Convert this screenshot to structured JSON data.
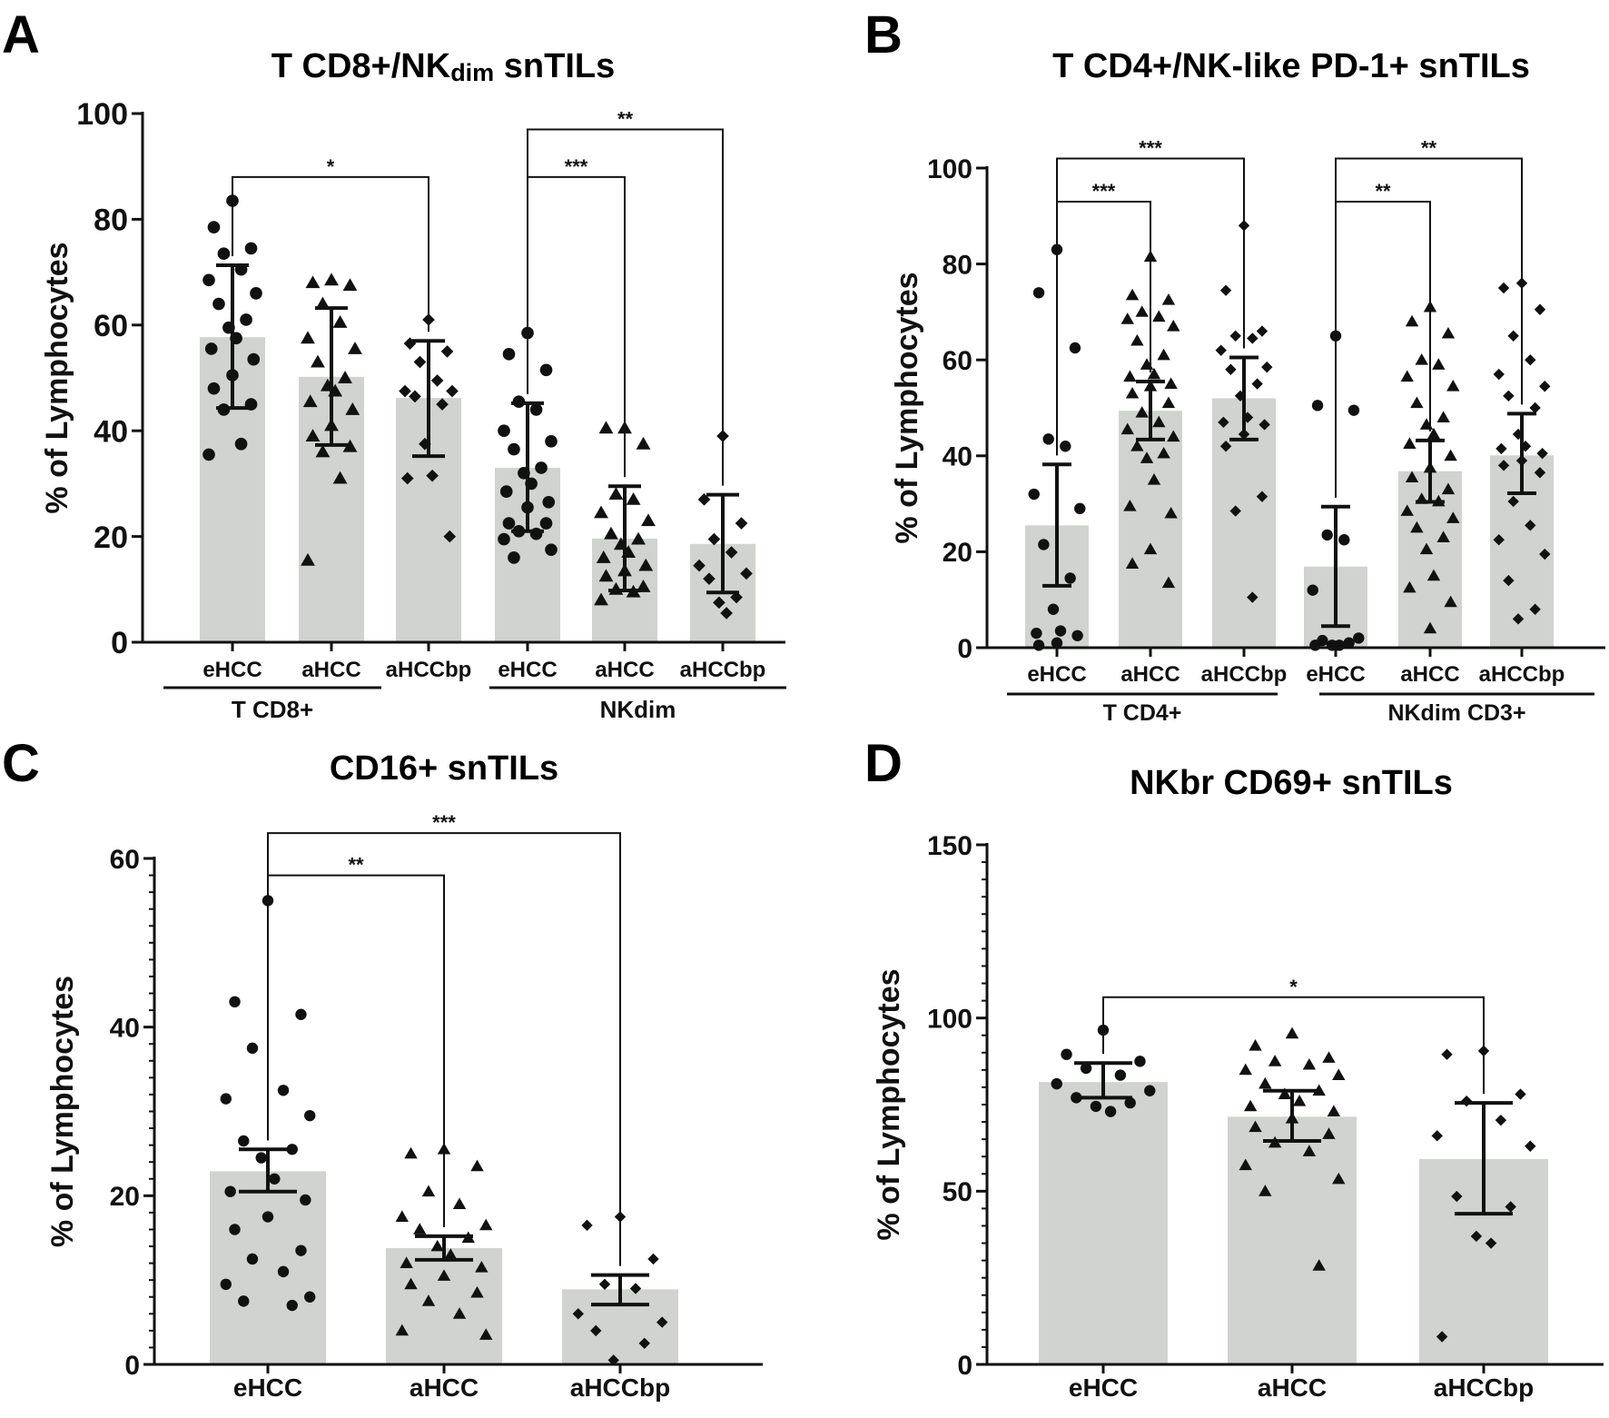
{
  "styles": {
    "bar_color": "#d0d3d0",
    "ink_color": "#111111"
  },
  "chart_data": [
    {
      "panel": "A",
      "type": "bar",
      "title": "T CD8+/NKdim snTILs",
      "title_main": "T CD8+/NK",
      "title_sub": "dim",
      "title_tail": " snTILs",
      "ylabel": "% of Lymphocytes",
      "ylim": [
        0,
        100
      ],
      "yticks": [
        0,
        20,
        40,
        60,
        80,
        100
      ],
      "minor_ticks": false,
      "markers": [
        "circle",
        "triangle",
        "diamond",
        "circle",
        "triangle",
        "diamond"
      ],
      "categories": [
        "eHCC",
        "aHCC",
        "aHCCbp",
        "eHCC",
        "aHCC",
        "aHCCbp"
      ],
      "groups": [
        {
          "label": "T CD8+",
          "from": 0,
          "to": 2
        },
        {
          "label": "NKdim",
          "from": 3,
          "to": 5
        }
      ],
      "means": [
        57.7,
        50.2,
        46.2,
        33.0,
        19.6,
        18.6
      ],
      "err_low": [
        44.3,
        37.3,
        35.2,
        21.0,
        9.8,
        9.4
      ],
      "err_high": [
        71.3,
        63.2,
        57.0,
        45.2,
        29.5,
        27.9
      ],
      "points": [
        [
          83.5,
          78.5,
          74.5,
          73.5,
          70.5,
          68.5,
          66.0,
          64.0,
          61.0,
          59.5,
          57.5,
          55.5,
          53.5,
          50.5,
          48.0,
          45.0,
          44.0,
          37.5,
          35.5
        ],
        [
          68.5,
          68.0,
          67.5,
          64.0,
          60.5,
          57.5,
          55.5,
          53.0,
          50.0,
          48.5,
          47.5,
          45.5,
          44.0,
          41.0,
          39.0,
          37.0,
          36.0,
          31.0,
          15.5
        ],
        [
          61.0,
          56.5,
          55.0,
          53.0,
          49.5,
          47.5,
          47.5,
          46.5,
          45.0,
          37.5,
          31.5,
          31.0,
          20.0
        ],
        [
          58.5,
          54.5,
          51.5,
          45.5,
          44.0,
          40.0,
          38.0,
          36.5,
          33.0,
          32.0,
          30.0,
          28.5,
          26.5,
          25.5,
          22.5,
          22.5,
          21.0,
          20.5,
          19.5,
          17.5,
          16.0
        ],
        [
          40.5,
          40.5,
          37.5,
          28.0,
          27.0,
          24.5,
          23.0,
          20.5,
          19.5,
          18.5,
          17.0,
          16.0,
          14.5,
          13.5,
          12.5,
          10.5,
          10.0,
          9.5,
          8.0
        ],
        [
          39.0,
          27.0,
          22.5,
          19.5,
          17.0,
          14.5,
          13.0,
          12.0,
          8.5,
          7.5,
          5.5
        ]
      ],
      "comparisons": [
        {
          "from": 0,
          "to": 2,
          "y": 88,
          "label": "*"
        },
        {
          "from": 3,
          "to": 4,
          "y": 88,
          "label": "***"
        },
        {
          "from": 3,
          "to": 5,
          "y": 97,
          "label": "**"
        }
      ]
    },
    {
      "panel": "B",
      "type": "bar",
      "title": "T CD4+/NK-like PD-1+ snTILs",
      "ylabel": "% of Lymphocytes",
      "ylim": [
        0,
        100
      ],
      "yticks": [
        0,
        20,
        40,
        60,
        80,
        100
      ],
      "minor_ticks": false,
      "markers": [
        "circle",
        "triangle",
        "diamond",
        "circle",
        "triangle",
        "diamond"
      ],
      "categories": [
        "eHCC",
        "aHCC",
        "aHCCbp",
        "eHCC",
        "aHCC",
        "aHCCbp"
      ],
      "groups": [
        {
          "label": "T CD4+",
          "from": 0,
          "to": 2
        },
        {
          "label": "NKdim CD3+",
          "from": 3,
          "to": 5
        }
      ],
      "means": [
        25.5,
        49.4,
        52.0,
        16.9,
        36.8,
        40.1
      ],
      "err_low": [
        12.9,
        43.4,
        43.4,
        4.5,
        30.4,
        32.2
      ],
      "err_high": [
        38.2,
        55.5,
        60.5,
        29.4,
        43.2,
        48.8
      ],
      "points": [
        [
          83.0,
          74.0,
          62.5,
          43.5,
          42.0,
          32.0,
          29.0,
          21.5,
          14.5,
          8.0,
          3.5,
          3.0,
          2.5,
          1.0,
          0.5
        ],
        [
          81.5,
          73.5,
          72.5,
          70.0,
          69.0,
          68.5,
          67.0,
          64.0,
          61.0,
          59.0,
          57.0,
          56.5,
          55.0,
          54.5,
          53.0,
          51.0,
          49.0,
          47.0,
          45.5,
          44.0,
          42.0,
          40.5,
          39.5,
          35.0,
          29.5,
          28.0,
          20.5,
          17.5,
          13.5
        ],
        [
          88.0,
          74.5,
          66.0,
          65.0,
          64.5,
          62.0,
          58.5,
          58.0,
          55.0,
          52.5,
          48.0,
          47.0,
          46.5,
          44.5,
          42.0,
          31.5,
          28.5,
          10.5
        ],
        [
          65.0,
          50.5,
          49.5,
          23.5,
          22.5,
          12.0,
          2.0,
          1.5,
          1.0,
          0.5,
          0.5,
          0.5
        ],
        [
          71.0,
          68.0,
          65.5,
          60.0,
          59.0,
          56.5,
          54.5,
          51.0,
          48.0,
          46.5,
          44.5,
          42.5,
          40.0,
          37.5,
          35.5,
          33.0,
          31.0,
          30.5,
          28.5,
          27.0,
          25.0,
          23.0,
          20.5,
          15.0,
          12.5,
          9.5,
          4.0
        ],
        [
          76.0,
          75.0,
          70.5,
          65.0,
          60.0,
          57.0,
          54.5,
          52.5,
          50.0,
          44.5,
          42.0,
          41.5,
          40.5,
          39.0,
          38.0,
          36.5,
          30.5,
          25.5,
          22.5,
          19.5,
          14.0,
          8.0,
          6.0
        ]
      ],
      "comparisons": [
        {
          "from": 0,
          "to": 1,
          "y": 93,
          "label": "***"
        },
        {
          "from": 0,
          "to": 2,
          "y": 102,
          "label": "***"
        },
        {
          "from": 3,
          "to": 4,
          "y": 93,
          "label": "**"
        },
        {
          "from": 3,
          "to": 5,
          "y": 102,
          "label": "**"
        }
      ]
    },
    {
      "panel": "C",
      "type": "bar",
      "title": "CD16+ snTILs",
      "ylabel": "% of Lymphocytes",
      "ylim": [
        0,
        60
      ],
      "yticks": [
        0,
        20,
        40,
        60
      ],
      "minor_ticks": true,
      "markers": [
        "circle",
        "triangle",
        "diamond"
      ],
      "categories": [
        "eHCC",
        "aHCC",
        "aHCCbp"
      ],
      "groups": [],
      "means": [
        22.9,
        13.8,
        8.9
      ],
      "err_low": [
        20.5,
        12.4,
        7.1
      ],
      "err_high": [
        25.5,
        15.2,
        10.6
      ],
      "points": [
        [
          55.0,
          43.0,
          41.5,
          37.5,
          32.5,
          31.5,
          29.5,
          26.5,
          25.5,
          24.5,
          22.0,
          20.5,
          19.5,
          17.5,
          16.0,
          13.5,
          12.5,
          11.0,
          9.5,
          8.0,
          7.5,
          7.0
        ],
        [
          25.5,
          25.0,
          23.5,
          20.5,
          19.0,
          17.5,
          16.5,
          16.0,
          15.0,
          14.0,
          13.0,
          12.0,
          11.5,
          10.5,
          9.5,
          8.5,
          7.5,
          6.0,
          4.0,
          3.5
        ],
        [
          17.5,
          16.5,
          12.5,
          9.5,
          9.0,
          6.0,
          5.0,
          4.0,
          2.5,
          0.5
        ]
      ],
      "comparisons": [
        {
          "from": 0,
          "to": 1,
          "y": 58,
          "label": "**"
        },
        {
          "from": 0,
          "to": 2,
          "y": 63,
          "label": "***"
        }
      ]
    },
    {
      "panel": "D",
      "type": "bar",
      "title": "NKbr CD69+ snTILs",
      "ylabel": "% of Lymphocytes",
      "ylim": [
        0,
        150
      ],
      "yticks": [
        0,
        50,
        100,
        150
      ],
      "minor_ticks": true,
      "markers": [
        "circle",
        "triangle",
        "diamond"
      ],
      "categories": [
        "eHCC",
        "aHCC",
        "aHCCbp"
      ],
      "groups": [],
      "means": [
        81.5,
        71.5,
        59.3
      ],
      "err_low": [
        77.0,
        64.5,
        43.5
      ],
      "err_high": [
        87.0,
        79.0,
        75.5
      ],
      "points": [
        [
          96.5,
          89.5,
          87.5,
          85.5,
          83.5,
          81.0,
          79.0,
          77.0,
          75.5,
          74.5,
          73.0
        ],
        [
          95.5,
          92.0,
          88.5,
          87.5,
          86.5,
          85.0,
          83.5,
          81.0,
          79.0,
          78.0,
          76.0,
          74.5,
          73.0,
          71.0,
          68.5,
          66.5,
          64.0,
          61.5,
          57.5,
          53.5,
          50.0,
          28.5
        ],
        [
          90.5,
          89.5,
          78.0,
          76.0,
          70.5,
          66.0,
          63.0,
          48.5,
          45.5,
          37.0,
          35.0,
          8.0
        ]
      ],
      "comparisons": [
        {
          "from": 0,
          "to": 2,
          "y": 106,
          "label": "*"
        }
      ]
    }
  ]
}
